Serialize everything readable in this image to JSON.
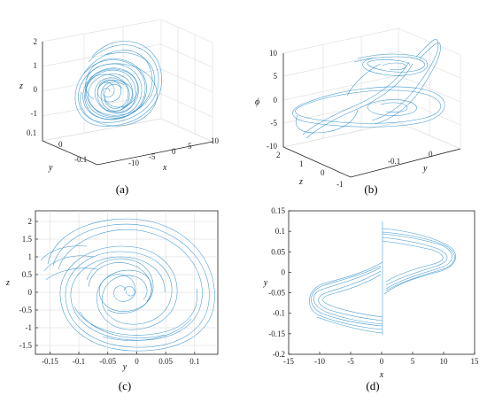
{
  "chart_data": [
    {
      "id": "a",
      "type": "line",
      "projection": "3d",
      "caption": "(a)",
      "xlabel": "x",
      "ylabel": "y",
      "zlabel": "z",
      "x_ticks": [
        "-10",
        "-5",
        "0",
        "5",
        "10"
      ],
      "y_ticks": [
        "-0.1",
        "0",
        "0.1"
      ],
      "z_ticks": [
        "-1",
        "0",
        "1",
        "2"
      ],
      "xlim": [
        -12,
        12
      ],
      "ylim": [
        -0.15,
        0.12
      ],
      "zlim": [
        -1.6,
        2.2
      ]
    },
    {
      "id": "b",
      "type": "line",
      "projection": "3d",
      "caption": "(b)",
      "xlabel": "z",
      "ylabel": "y",
      "zlabel": "ϕ",
      "x_ticks": [
        "2",
        "1",
        "0",
        "-1"
      ],
      "y_ticks": [
        "-0.1",
        "0"
      ],
      "z_ticks": [
        "10",
        "5",
        "0",
        "-5",
        "-10"
      ],
      "xlim": [
        -1.6,
        2.2
      ],
      "ylim": [
        -0.15,
        0.12
      ],
      "zlim": [
        -11,
        11
      ]
    },
    {
      "id": "c",
      "type": "line",
      "caption": "(c)",
      "xlabel": "y",
      "ylabel": "z",
      "x_ticks": [
        "-0.15",
        "-0.1",
        "-0.05",
        "0",
        "0.05",
        "0.1"
      ],
      "y_ticks": [
        "2",
        "1.5",
        "1",
        "0.5",
        "0",
        "-0.5",
        "-1",
        "-1.5"
      ],
      "xlim": [
        -0.175,
        0.14
      ],
      "ylim": [
        -1.75,
        2.3
      ],
      "grid": true
    },
    {
      "id": "d",
      "type": "line",
      "caption": "(d)",
      "xlabel": "x",
      "ylabel": "y",
      "x_ticks": [
        "-15",
        "-10",
        "-5",
        "0",
        "5",
        "10",
        "15"
      ],
      "y_ticks": [
        "0.15",
        "0.1",
        "0.05",
        "0",
        "-0.05",
        "-0.1",
        "-0.15",
        "-0.2"
      ],
      "xlim": [
        -15,
        15
      ],
      "ylim": [
        -0.2,
        0.15
      ],
      "grid": false
    }
  ],
  "style": {
    "line_color": "#1f86c8"
  }
}
